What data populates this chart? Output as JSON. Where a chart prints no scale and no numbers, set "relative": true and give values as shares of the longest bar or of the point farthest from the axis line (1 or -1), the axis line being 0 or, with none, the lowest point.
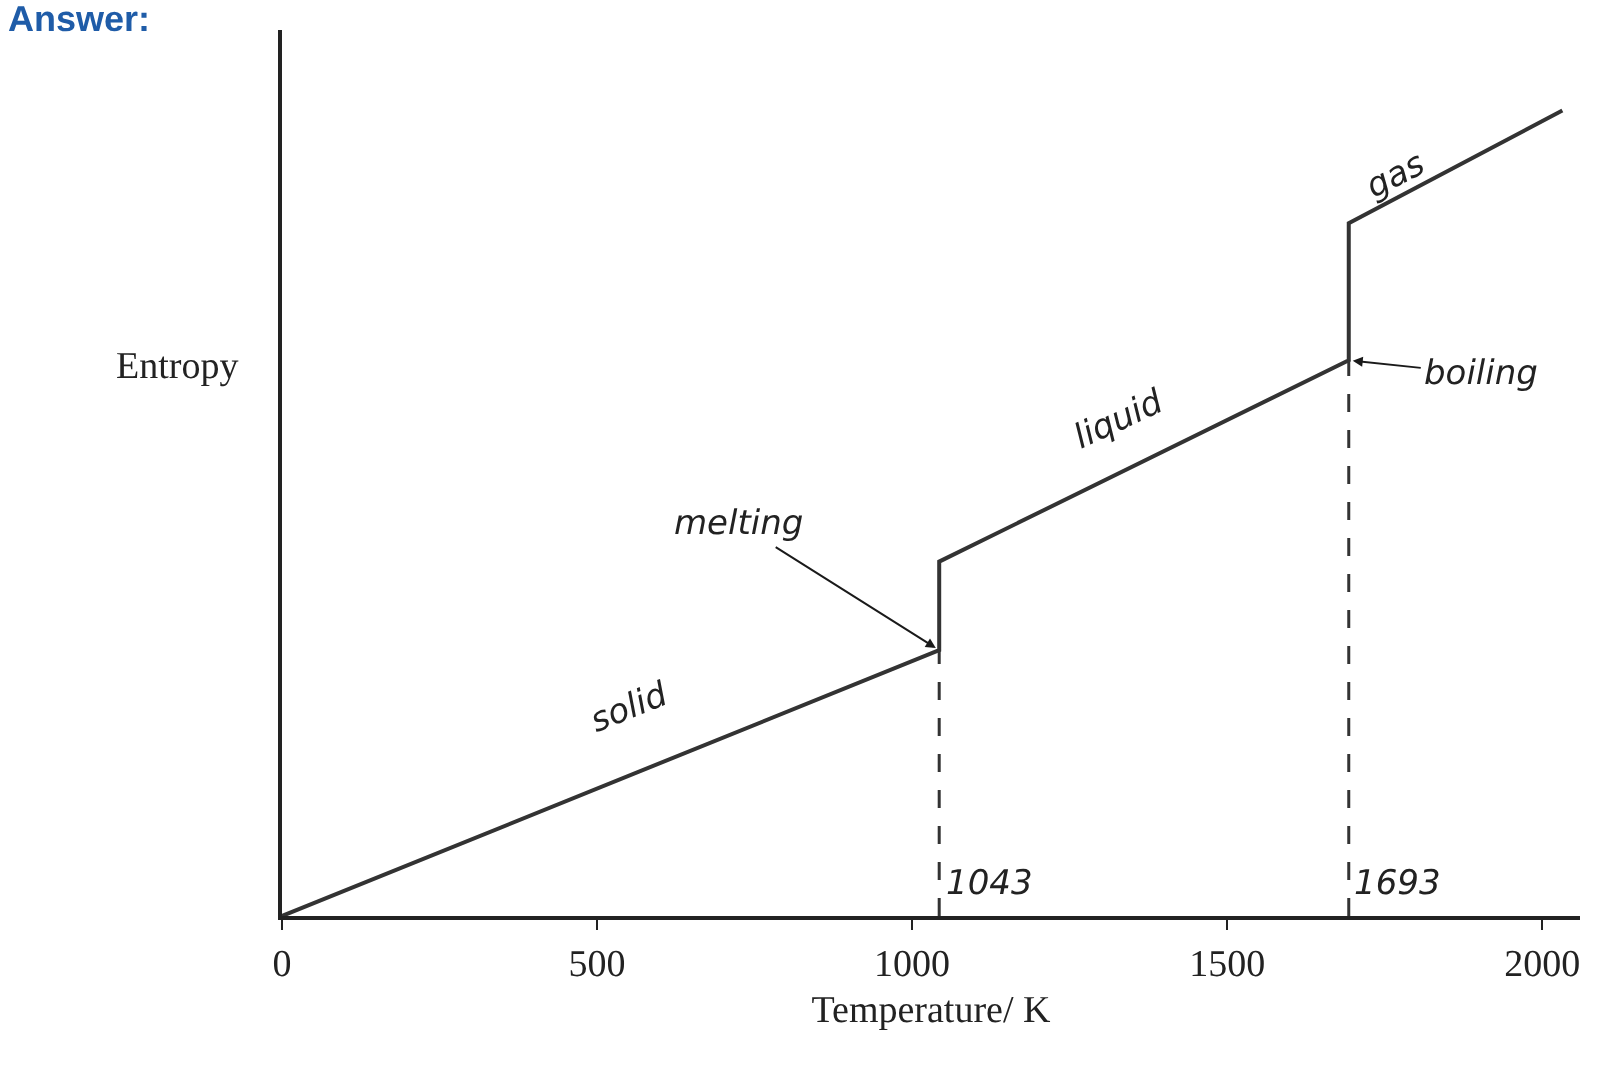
{
  "chart_data": {
    "type": "line",
    "title": "Answer:",
    "xlabel": "Temperature/ K",
    "ylabel": "Entropy",
    "relative": true,
    "x": [
      0,
      1043,
      1043,
      1693,
      1693,
      2032
    ],
    "series": [
      {
        "color": "#333333",
        "values": [
          0,
          0.33,
          0.44,
          0.69,
          0.86,
          1.0
        ]
      }
    ],
    "xlim": [
      0,
      2060
    ],
    "xticks": [
      0,
      500,
      1000,
      1500,
      2000
    ],
    "ref_lines": [
      {
        "axis": "x",
        "value": 1043,
        "label": "1043",
        "line_style": "dashed",
        "color": "#333333"
      },
      {
        "axis": "x",
        "value": 1693,
        "label": "1693",
        "line_style": "dashed",
        "color": "#333333"
      }
    ],
    "annotations": [
      "solid",
      "liquid",
      "gas",
      {
        "text": "melting",
        "x": 1043,
        "y": 0.33
      },
      {
        "text": "boiling",
        "x": 1693,
        "y": 0.69
      }
    ],
    "legend": false,
    "marker": "none",
    "line_style": "solid"
  }
}
